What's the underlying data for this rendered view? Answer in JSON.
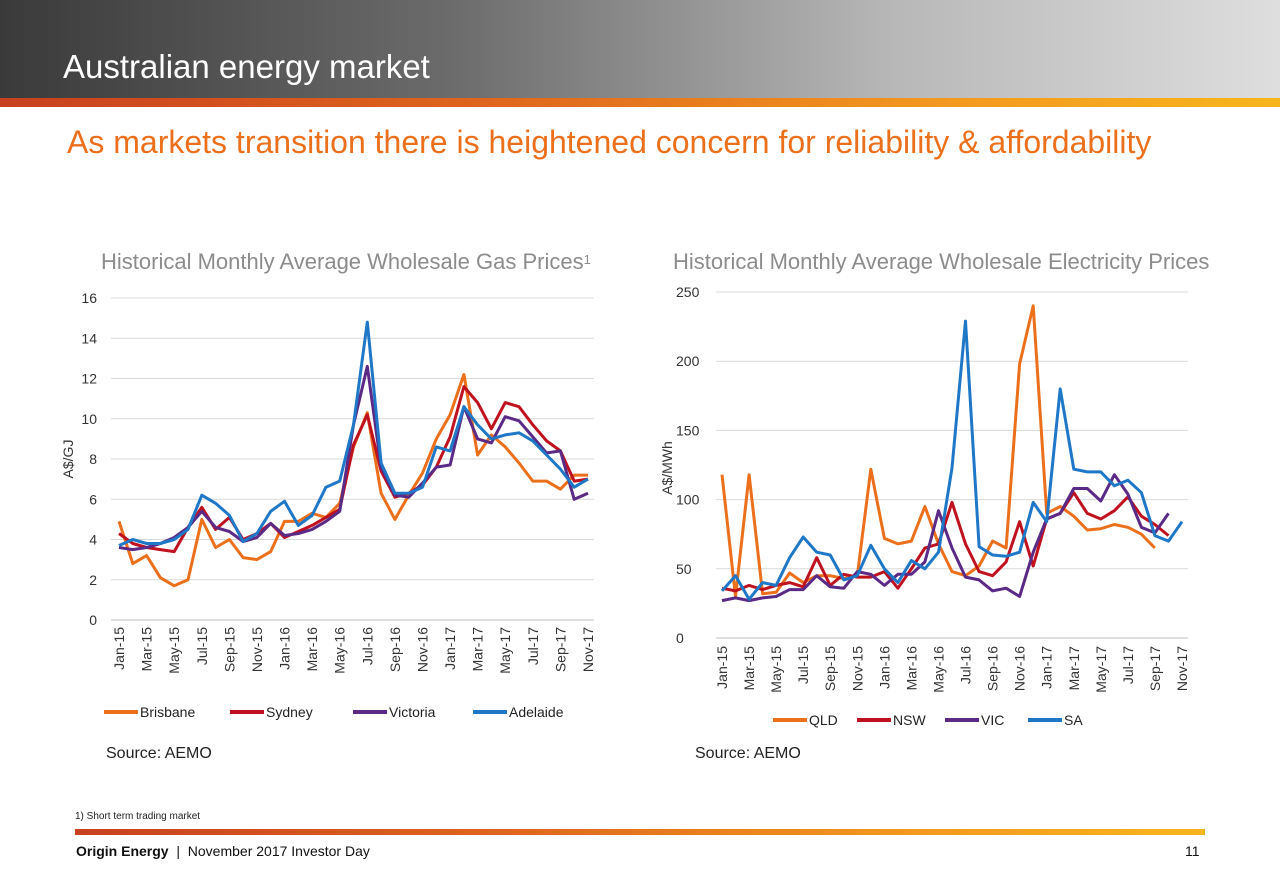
{
  "header": {
    "title": "Australian energy market"
  },
  "subtitle": "As markets transition there is heightened concern for reliability & affordability",
  "gas": {
    "title": "Historical Monthly Average Wholesale Gas Prices",
    "footnote_mark": "1",
    "source": "Source: AEMO"
  },
  "electricity": {
    "title": "Historical Monthly Average Wholesale Electricity Prices",
    "source": "Source: AEMO"
  },
  "footnote": "1) Short term trading market",
  "footer": {
    "brand": "Origin Energy",
    "separator": "|",
    "event": "November 2017 Investor Day",
    "page": "11"
  },
  "chart_data": [
    {
      "type": "line",
      "title": "Historical Monthly Average Wholesale Gas Prices",
      "ylabel": "A$/GJ",
      "xlabel": "",
      "ylim": [
        0,
        16
      ],
      "yticks": [
        0,
        2,
        4,
        6,
        8,
        10,
        12,
        14,
        16
      ],
      "grid": true,
      "legend": "bottom",
      "x": [
        "Jan-15",
        "Feb-15",
        "Mar-15",
        "Apr-15",
        "May-15",
        "Jun-15",
        "Jul-15",
        "Aug-15",
        "Sep-15",
        "Oct-15",
        "Nov-15",
        "Dec-15",
        "Jan-16",
        "Feb-16",
        "Mar-16",
        "Apr-16",
        "May-16",
        "Jun-16",
        "Jul-16",
        "Aug-16",
        "Sep-16",
        "Oct-16",
        "Nov-16",
        "Dec-16",
        "Jan-17",
        "Feb-17",
        "Mar-17",
        "Apr-17",
        "May-17",
        "Jun-17",
        "Jul-17",
        "Aug-17",
        "Sep-17",
        "Oct-17",
        "Nov-17"
      ],
      "x_tick_labels": [
        "Jan-15",
        "Mar-15",
        "May-15",
        "Jul-15",
        "Sep-15",
        "Nov-15",
        "Jan-16",
        "Mar-16",
        "May-16",
        "Jul-16",
        "Sep-16",
        "Nov-16",
        "Jan-17",
        "Mar-17",
        "May-17",
        "Jul-17",
        "Sep-17",
        "Nov-17"
      ],
      "series": [
        {
          "name": "Brisbane",
          "color": "#ec6f1c",
          "values": [
            4.9,
            2.8,
            3.2,
            2.1,
            1.7,
            2.0,
            5.0,
            3.6,
            4.0,
            3.1,
            3.0,
            3.4,
            4.9,
            4.9,
            5.3,
            5.1,
            5.8,
            8.6,
            10.3,
            6.3,
            5.0,
            6.2,
            7.3,
            9.0,
            10.2,
            12.2,
            8.2,
            9.2,
            8.6,
            7.8,
            6.9,
            6.9,
            6.5,
            7.2,
            7.2
          ]
        },
        {
          "name": "Sydney",
          "color": "#c0111f",
          "values": [
            4.3,
            3.8,
            3.6,
            3.5,
            3.4,
            4.6,
            5.6,
            4.5,
            5.1,
            4.0,
            4.3,
            4.8,
            4.1,
            4.4,
            4.7,
            5.1,
            5.5,
            8.7,
            10.2,
            7.4,
            6.1,
            6.3,
            6.7,
            7.6,
            9.1,
            11.6,
            10.8,
            9.5,
            10.8,
            10.6,
            9.7,
            8.9,
            8.4,
            6.9,
            7.0
          ]
        },
        {
          "name": "Victoria",
          "color": "#5b2a86",
          "values": [
            3.6,
            3.5,
            3.6,
            3.8,
            4.1,
            4.6,
            5.4,
            4.6,
            4.4,
            3.9,
            4.1,
            4.8,
            4.2,
            4.3,
            4.5,
            4.9,
            5.4,
            9.7,
            12.6,
            7.6,
            6.2,
            6.1,
            6.8,
            7.6,
            7.7,
            10.6,
            9.0,
            8.8,
            10.1,
            9.9,
            9.1,
            8.3,
            8.4,
            6.0,
            6.3
          ]
        },
        {
          "name": "Adelaide",
          "color": "#1f77c8",
          "values": [
            3.7,
            4.0,
            3.8,
            3.8,
            4.0,
            4.5,
            6.2,
            5.8,
            5.2,
            3.9,
            4.3,
            5.4,
            5.9,
            4.7,
            5.2,
            6.6,
            6.9,
            9.7,
            14.8,
            7.8,
            6.3,
            6.3,
            6.6,
            8.6,
            8.4,
            10.6,
            9.7,
            9.0,
            9.2,
            9.3,
            8.9,
            8.2,
            7.5,
            6.6,
            7.0
          ]
        }
      ]
    },
    {
      "type": "line",
      "title": "Historical Monthly Average Wholesale Electricity Prices",
      "ylabel": "A$/MWh",
      "xlabel": "",
      "ylim": [
        0,
        250
      ],
      "yticks": [
        0,
        50,
        100,
        150,
        200,
        250
      ],
      "grid": true,
      "legend": "bottom",
      "x": [
        "Jan-15",
        "Feb-15",
        "Mar-15",
        "Apr-15",
        "May-15",
        "Jun-15",
        "Jul-15",
        "Aug-15",
        "Sep-15",
        "Oct-15",
        "Nov-15",
        "Dec-15",
        "Jan-16",
        "Feb-16",
        "Mar-16",
        "Apr-16",
        "May-16",
        "Jun-16",
        "Jul-16",
        "Aug-16",
        "Sep-16",
        "Oct-16",
        "Nov-16",
        "Dec-16",
        "Jan-17",
        "Feb-17",
        "Mar-17",
        "Apr-17",
        "May-17",
        "Jun-17",
        "Jul-17",
        "Aug-17",
        "Sep-17",
        "Oct-17",
        "Nov-17"
      ],
      "x_tick_labels": [
        "Jan-15",
        "Mar-15",
        "May-15",
        "Jul-15",
        "Sep-15",
        "Nov-15",
        "Jan-16",
        "Mar-16",
        "May-16",
        "Jul-16",
        "Sep-16",
        "Nov-16",
        "Jan-17",
        "Mar-17",
        "May-17",
        "Jul-17",
        "Sep-17",
        "Nov-17"
      ],
      "series": [
        {
          "name": "QLD",
          "color": "#ec6f1c",
          "values": [
            118,
            30,
            118,
            32,
            33,
            47,
            40,
            45,
            45,
            43,
            45,
            122,
            72,
            68,
            70,
            95,
            68,
            48,
            45,
            52,
            70,
            65,
            198,
            240,
            90,
            95,
            88,
            78,
            79,
            82,
            80,
            75,
            65,
            null,
            null
          ]
        },
        {
          "name": "NSW",
          "color": "#c0111f",
          "values": [
            36,
            34,
            38,
            35,
            38,
            40,
            37,
            58,
            38,
            46,
            44,
            44,
            48,
            36,
            50,
            65,
            68,
            98,
            68,
            48,
            45,
            55,
            84,
            52,
            86,
            90,
            105,
            90,
            86,
            92,
            102,
            88,
            82,
            74,
            null
          ]
        },
        {
          "name": "VIC",
          "color": "#5b2a86",
          "values": [
            27,
            29,
            27,
            29,
            30,
            35,
            35,
            45,
            37,
            36,
            48,
            46,
            38,
            46,
            46,
            55,
            92,
            65,
            44,
            42,
            34,
            36,
            30,
            62,
            86,
            90,
            108,
            108,
            99,
            118,
            104,
            80,
            76,
            90,
            null
          ]
        },
        {
          "name": "SA",
          "color": "#1f77c8",
          "values": [
            34,
            45,
            28,
            40,
            38,
            58,
            73,
            62,
            60,
            42,
            45,
            67,
            50,
            40,
            56,
            50,
            62,
            123,
            229,
            66,
            60,
            59,
            62,
            98,
            84,
            180,
            122,
            120,
            120,
            110,
            114,
            105,
            74,
            70,
            84
          ]
        }
      ]
    }
  ]
}
